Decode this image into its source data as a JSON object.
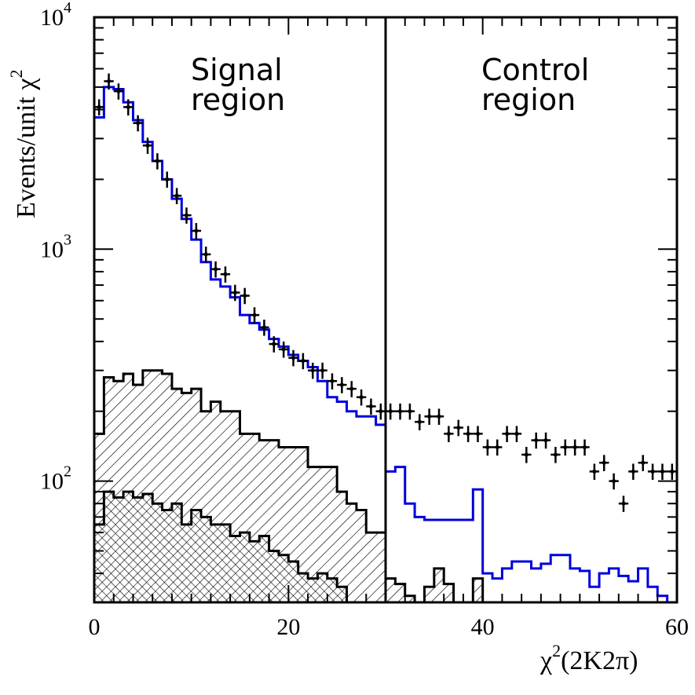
{
  "chart_data": {
    "type": "histogram",
    "ylog": true,
    "xlim": [
      0,
      60
    ],
    "ylim": [
      30,
      10000
    ],
    "x_ticks": [
      0,
      20,
      40,
      60
    ],
    "y_ticks": [
      {
        "value": 100,
        "base": "10",
        "exp": "2"
      },
      {
        "value": 1000,
        "base": "10",
        "exp": "3"
      },
      {
        "value": 10000,
        "base": "10",
        "exp": "4"
      }
    ],
    "xlabel": {
      "main": "χ",
      "sup": "2",
      "rest": "(2K2π)"
    },
    "ylabel": {
      "main": "Events/unit χ",
      "sup": "2"
    },
    "cut_x": 30,
    "annotations": {
      "signal": [
        "Signal",
        "region"
      ],
      "control": [
        "Control",
        "region"
      ]
    },
    "bin_edges_start": 0,
    "bin_width": 1,
    "data_points": {
      "x": [
        0.5,
        1.5,
        2.5,
        3.5,
        4.5,
        5.5,
        6.5,
        7.5,
        8.5,
        9.5,
        10.5,
        11.5,
        12.5,
        13.5,
        14.5,
        15.5,
        16.5,
        17.5,
        18.5,
        19.5,
        20.5,
        21.5,
        22.5,
        23.5,
        24.5,
        25.5,
        26.5,
        27.5,
        28.5,
        29.5,
        30.5,
        31.5,
        32.5,
        33.5,
        34.5,
        35.5,
        36.5,
        37.5,
        38.5,
        39.5,
        40.5,
        41.5,
        42.5,
        43.5,
        44.5,
        45.5,
        46.5,
        47.5,
        48.5,
        49.5,
        50.5,
        51.5,
        52.5,
        53.5,
        54.5,
        55.5,
        56.5,
        57.5,
        58.5,
        59.5
      ],
      "y": [
        4100,
        5300,
        4800,
        4100,
        3500,
        2800,
        2400,
        2000,
        1700,
        1400,
        1200,
        950,
        820,
        780,
        650,
        630,
        520,
        460,
        390,
        370,
        340,
        330,
        300,
        300,
        270,
        260,
        250,
        230,
        210,
        200,
        200,
        200,
        200,
        180,
        190,
        190,
        160,
        170,
        160,
        160,
        140,
        140,
        160,
        160,
        130,
        150,
        150,
        130,
        140,
        140,
        140,
        110,
        120,
        100,
        80,
        110,
        120,
        110,
        110,
        110
      ],
      "yerr_rel": 0.08
    },
    "mc_total": {
      "name": "MC",
      "color": "#0000dd",
      "values": [
        3700,
        5000,
        4900,
        4300,
        3600,
        2900,
        2400,
        2000,
        1650,
        1350,
        1100,
        880,
        740,
        690,
        620,
        520,
        480,
        450,
        410,
        380,
        350,
        330,
        310,
        270,
        230,
        220,
        200,
        190,
        190,
        175,
        110,
        115,
        80,
        70,
        68,
        68,
        68,
        68,
        68,
        92,
        40,
        38,
        42,
        45,
        45,
        42,
        44,
        48,
        48,
        42,
        41,
        35,
        40,
        42,
        39,
        37,
        42,
        35,
        32,
        30
      ]
    },
    "background_hatched": {
      "name": "",
      "values": [
        160,
        280,
        270,
        290,
        260,
        300,
        300,
        290,
        250,
        240,
        250,
        200,
        220,
        200,
        200,
        160,
        160,
        150,
        150,
        140,
        140,
        140,
        115,
        115,
        115,
        90,
        80,
        75,
        60,
        60,
        38,
        36,
        32,
        30,
        35,
        42,
        36,
        30,
        30,
        38,
        25,
        25,
        25,
        22,
        24,
        22,
        22,
        20,
        18,
        22,
        20,
        18,
        25,
        16,
        16,
        16,
        16,
        14,
        18,
        20
      ]
    },
    "background_crosshatched": {
      "name": "",
      "values": [
        65,
        90,
        85,
        90,
        85,
        88,
        80,
        75,
        80,
        65,
        75,
        70,
        65,
        65,
        58,
        60,
        55,
        58,
        50,
        48,
        45,
        40,
        38,
        40,
        38,
        35,
        28,
        25,
        22,
        20
      ]
    }
  }
}
